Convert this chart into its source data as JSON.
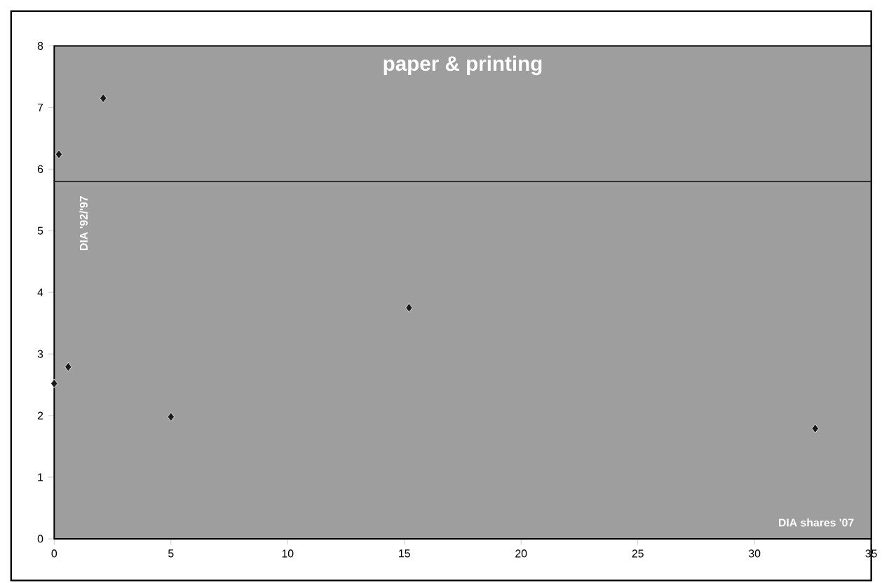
{
  "chart_data": {
    "type": "scatter",
    "title": "paper & printing",
    "xlabel": "DIA shares '07",
    "ylabel": "DIA '92/'97",
    "x": [
      0.2,
      2.1,
      0,
      0.6,
      5,
      15.2,
      32.6
    ],
    "values": [
      6.24,
      7.15,
      2.52,
      2.79,
      1.98,
      3.75,
      1.79
    ],
    "color": "#1a1a1a",
    "marker": "diamond",
    "xlim": [
      0,
      35
    ],
    "ylim": [
      0,
      8
    ],
    "xticks": [
      0,
      5,
      10,
      15,
      20,
      25,
      30,
      35
    ],
    "yticks": [
      0,
      1,
      2,
      3,
      4,
      5,
      6,
      7,
      8
    ],
    "ref_lines": [
      {
        "axis": "y",
        "value": 5.8,
        "color": "#202020"
      }
    ],
    "grid": false
  }
}
